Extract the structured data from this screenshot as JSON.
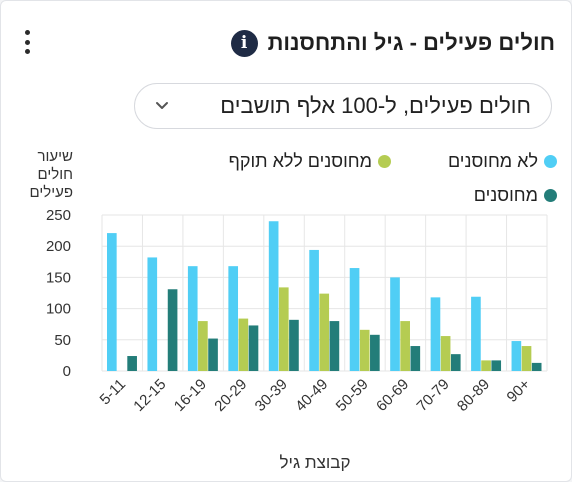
{
  "header": {
    "title": "חולים פעילים - גיל והתחסנות",
    "info_glyph": "i",
    "info_icon": "info-icon",
    "more_icon": "more-vertical-icon"
  },
  "selector": {
    "value": "חולים פעילים, ל-100 אלף תושבים",
    "icon": "chevron-down-icon"
  },
  "colors": {
    "unvaccinated": "#50cef5",
    "expired": "#b5cc52",
    "vaccinated": "#237d79",
    "grid": "#e6e6e6"
  },
  "chart_data": {
    "type": "bar",
    "ylabel": [
      "שיעור",
      "חולים",
      "פעילים"
    ],
    "xlabel": "קבוצת גיל",
    "ylim": [
      0,
      250
    ],
    "yticks": [
      0,
      50,
      100,
      150,
      200,
      250
    ],
    "grid": true,
    "legend_position": "top-right",
    "categories": [
      "5-11",
      "12-15",
      "16-19",
      "20-29",
      "30-39",
      "40-49",
      "50-59",
      "60-69",
      "70-79",
      "80-89",
      "90+"
    ],
    "series": [
      {
        "name": "לא מחוסנים",
        "color": "#50cef5",
        "values": [
          221,
          182,
          168,
          168,
          240,
          194,
          165,
          150,
          118,
          119,
          48
        ]
      },
      {
        "name": "מחוסנים ללא תוקף",
        "color": "#b5cc52",
        "values": [
          null,
          null,
          80,
          84,
          134,
          124,
          66,
          80,
          56,
          17,
          40
        ]
      },
      {
        "name": "מחוסנים",
        "color": "#237d79",
        "values": [
          24,
          131,
          52,
          73,
          82,
          80,
          58,
          40,
          27,
          17,
          13
        ]
      }
    ]
  }
}
